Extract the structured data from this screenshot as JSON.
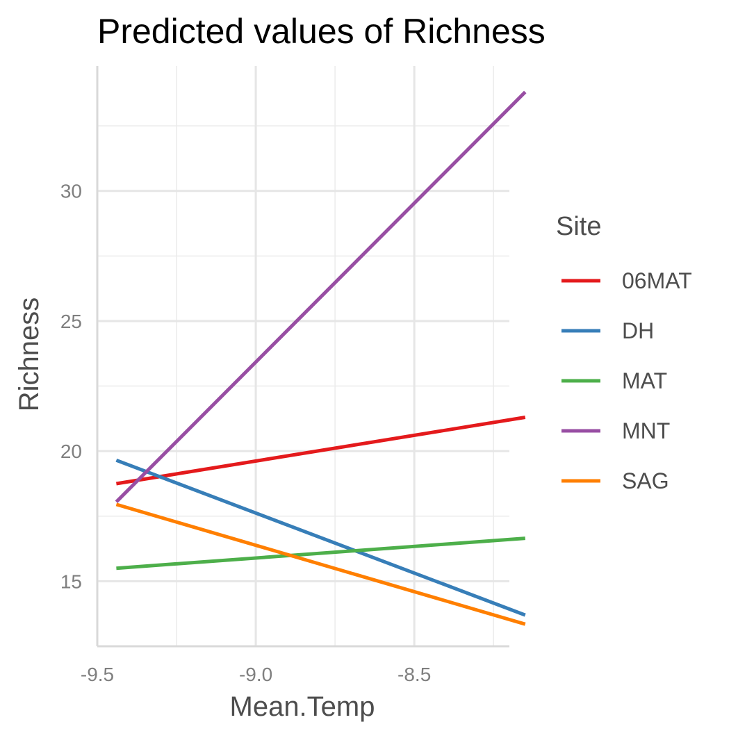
{
  "chart_data": {
    "type": "line",
    "title": "Predicted values of Richness",
    "xlabel": "Mean.Temp",
    "ylabel": "Richness",
    "xlim": [
      -9.5,
      -8.2
    ],
    "ylim": [
      12.5,
      34.8
    ],
    "x_ticks": [
      -9.5,
      -9.0,
      -8.5
    ],
    "x_tick_labels": [
      "-9.5",
      "-9.0",
      "-8.5"
    ],
    "x_minor_ticks": [
      -9.25,
      -8.75,
      -8.25
    ],
    "y_ticks": [
      15,
      20,
      25,
      30
    ],
    "y_tick_labels": [
      "15",
      "20",
      "25",
      "30"
    ],
    "y_minor_ticks": [
      12.5,
      17.5,
      22.5,
      27.5,
      32.5
    ],
    "legend": {
      "title": "Site",
      "position": "right"
    },
    "series": [
      {
        "name": "06MAT",
        "color": "#E41A1C",
        "x": [
          -9.44,
          -8.15
        ],
        "y": [
          18.75,
          21.3
        ]
      },
      {
        "name": "DH",
        "color": "#377EB8",
        "x": [
          -9.44,
          -8.15
        ],
        "y": [
          19.65,
          13.7
        ]
      },
      {
        "name": "MAT",
        "color": "#4DAF4A",
        "x": [
          -9.44,
          -8.15
        ],
        "y": [
          15.5,
          16.65
        ]
      },
      {
        "name": "MNT",
        "color": "#984EA3",
        "x": [
          -9.44,
          -8.15
        ],
        "y": [
          18.05,
          33.8
        ]
      },
      {
        "name": "SAG",
        "color": "#FF7F00",
        "x": [
          -9.44,
          -8.15
        ],
        "y": [
          17.95,
          13.35
        ]
      }
    ]
  }
}
